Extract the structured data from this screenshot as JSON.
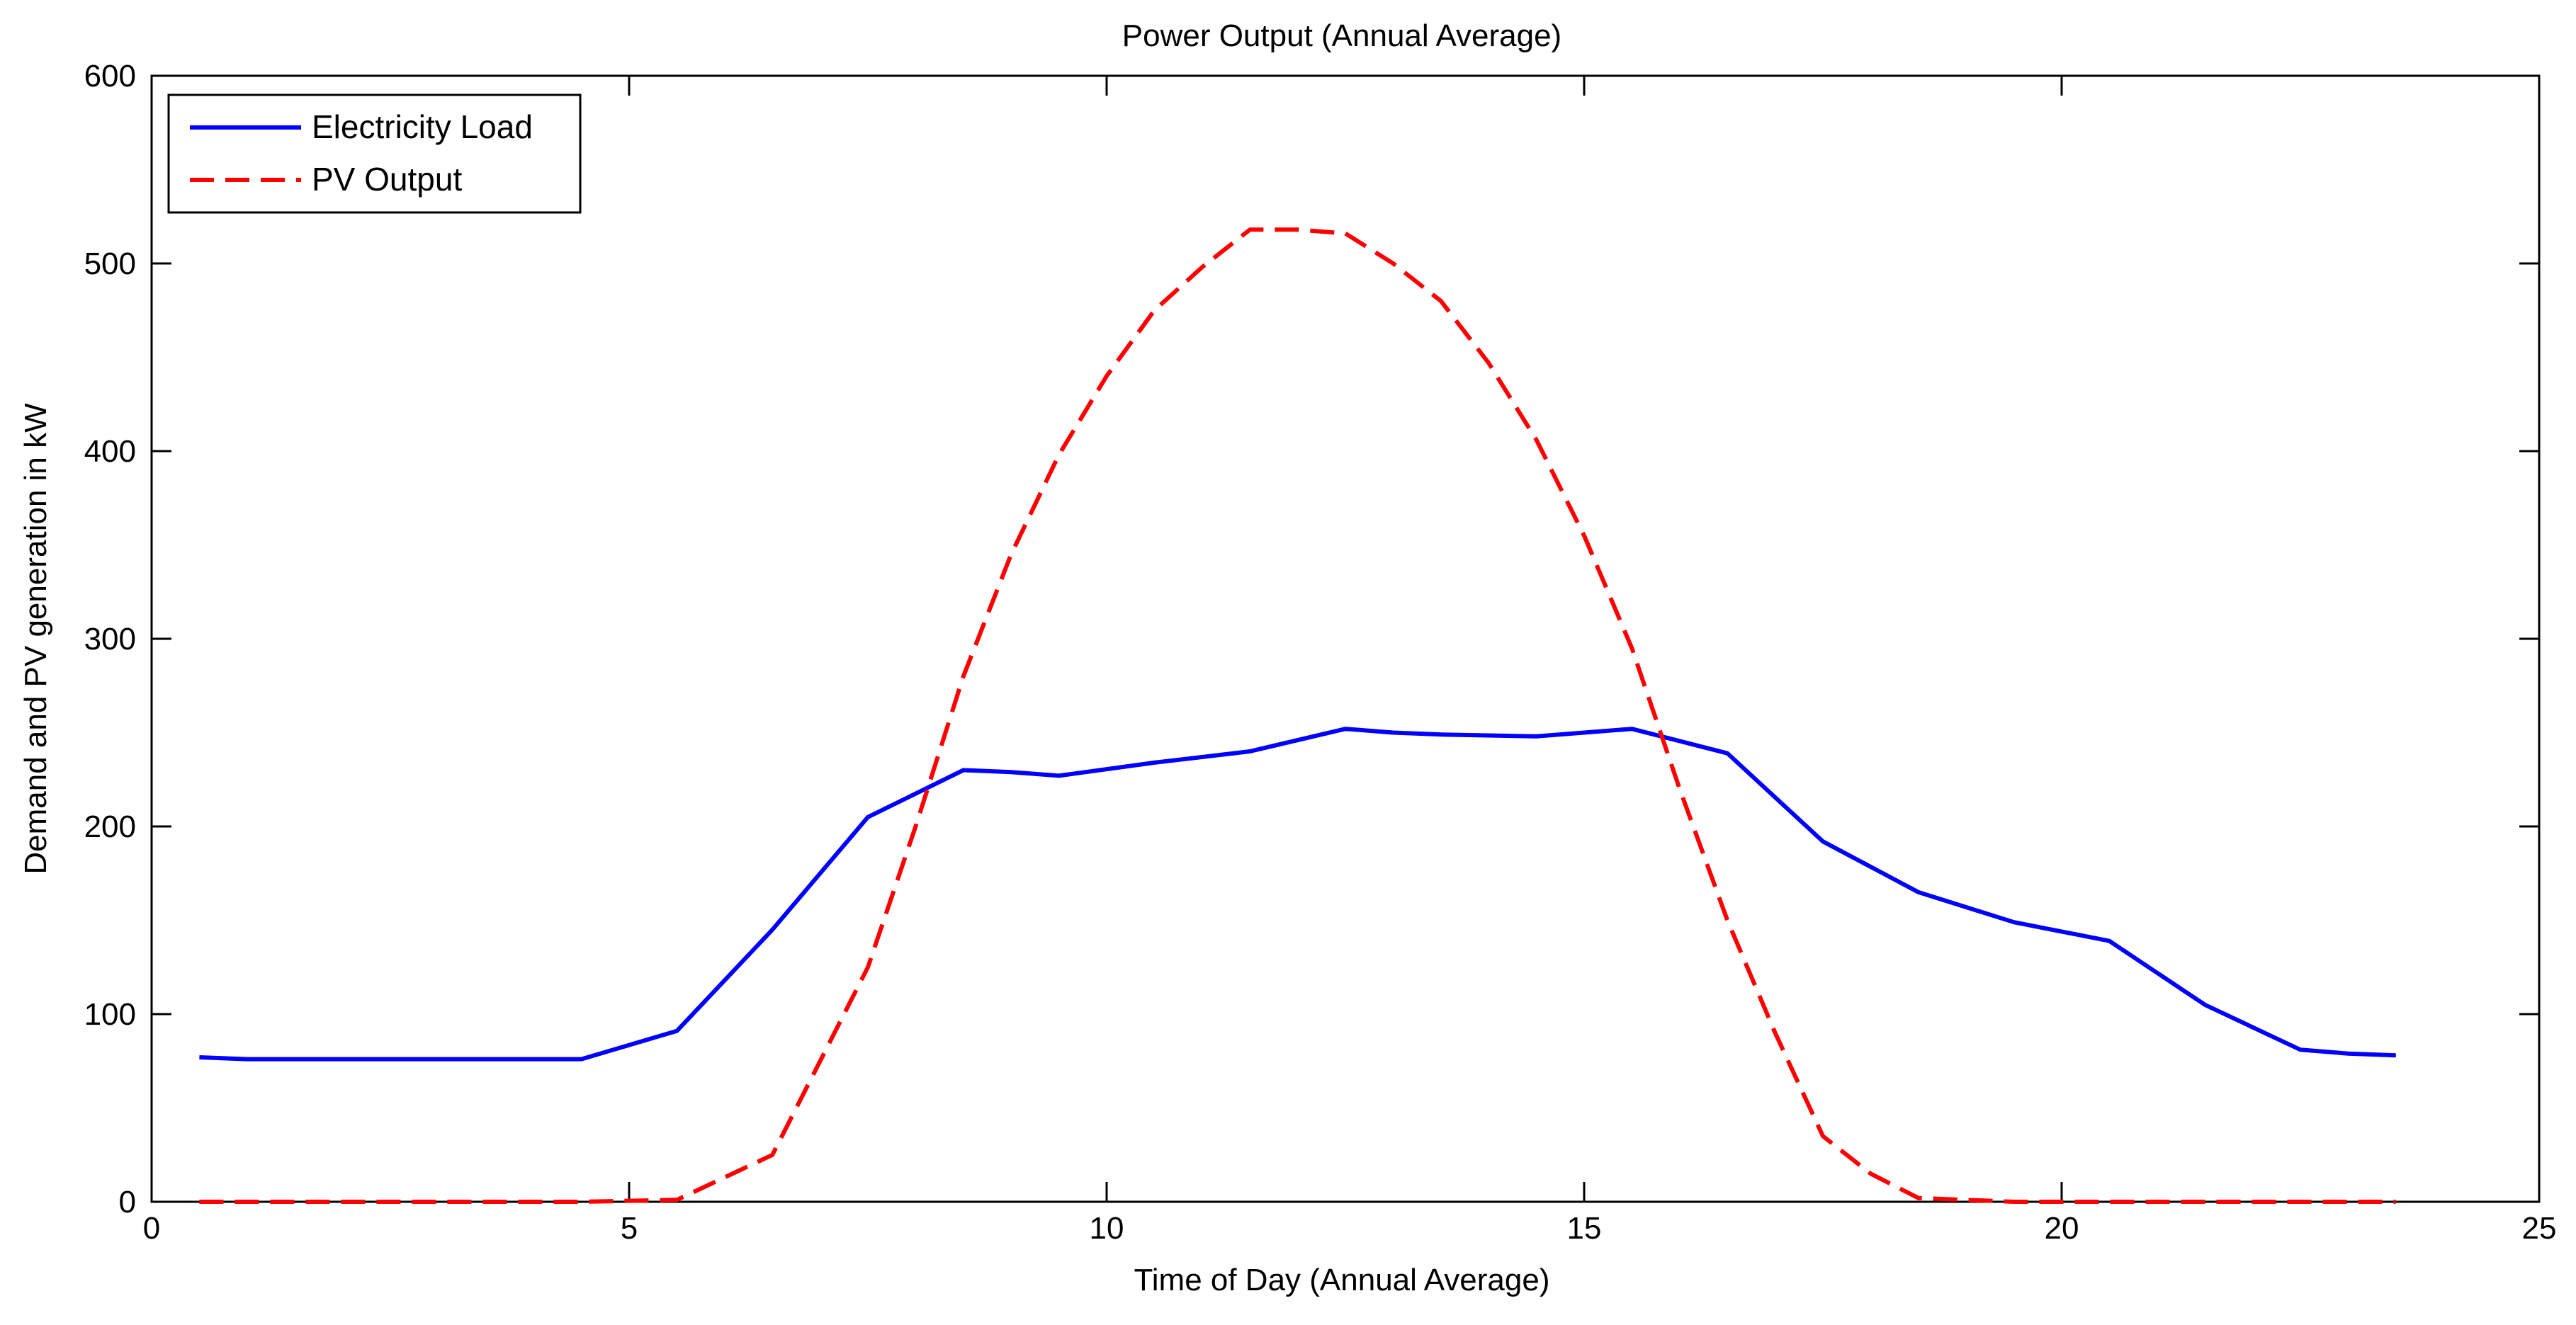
{
  "chart_data": {
    "type": "line",
    "title": "Power Output (Annual Average)",
    "xlabel": "Time of Day (Annual Average)",
    "ylabel": "Demand and PV generation in kW",
    "xlim": [
      0,
      25
    ],
    "ylim": [
      0,
      600
    ],
    "xticks": [
      0,
      5,
      10,
      15,
      20,
      25
    ],
    "yticks": [
      0,
      100,
      200,
      300,
      400,
      500,
      600
    ],
    "grid": false,
    "legend_position": "top-left",
    "series": [
      {
        "name": "Electricity Load",
        "color": "#0000ff",
        "style": "solid",
        "x": [
          0.5,
          1.0,
          1.5,
          2.5,
          3.5,
          4.5,
          5.5,
          6.5,
          7.5,
          8.5,
          9.0,
          9.5,
          10.5,
          11.5,
          12.5,
          13.0,
          13.5,
          14.5,
          15.5,
          16.5,
          17.5,
          18.5,
          19.5,
          20.5,
          21.5,
          22.5,
          23.0,
          23.5
        ],
        "y": [
          77,
          76,
          76,
          76,
          76,
          76,
          91,
          145,
          205,
          230,
          229,
          227,
          234,
          240,
          252,
          250,
          249,
          248,
          252,
          239,
          192,
          165,
          149,
          139,
          105,
          81,
          79,
          78
        ]
      },
      {
        "name": "PV Output",
        "color": "#ff0000",
        "style": "dashed",
        "x": [
          0.5,
          1.5,
          2.5,
          3.5,
          4.5,
          5.5,
          6.5,
          7.5,
          8.0,
          8.5,
          9.0,
          9.5,
          10.0,
          10.5,
          11.0,
          11.5,
          12.0,
          12.5,
          13.0,
          13.5,
          14.0,
          14.5,
          15.0,
          15.5,
          16.0,
          16.5,
          17.0,
          17.5,
          18.0,
          18.5,
          19.0,
          19.5,
          20.5,
          21.5,
          22.5,
          23.5
        ],
        "y": [
          0,
          0,
          0,
          0,
          0,
          1,
          25,
          125,
          200,
          280,
          345,
          398,
          440,
          475,
          498,
          518,
          518,
          516,
          500,
          480,
          447,
          406,
          355,
          295,
          220,
          150,
          90,
          35,
          15,
          2,
          1,
          0,
          0,
          0,
          0,
          0
        ]
      }
    ]
  }
}
